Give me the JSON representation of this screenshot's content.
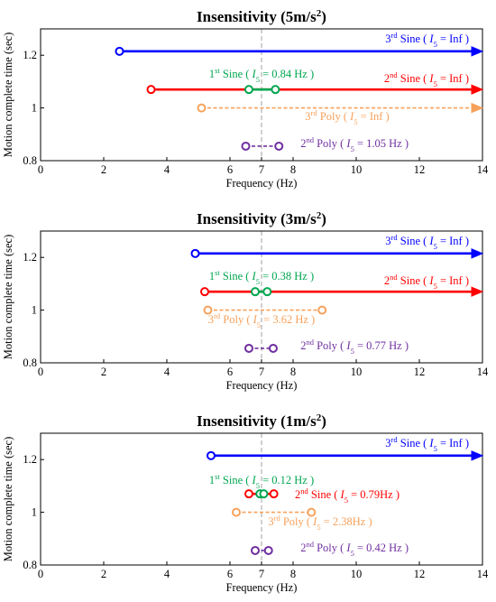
{
  "chart_data": [
    {
      "type": "line",
      "title": "Insensitivity (5m/s²)",
      "xlabel": "Frequency (Hz)",
      "ylabel": "Motion complete time (sec)",
      "xlim": [
        0,
        14
      ],
      "ylim": [
        0.8,
        1.3
      ],
      "xticks": [
        "0",
        "2",
        "4",
        "6",
        "7",
        "8",
        "10",
        "12",
        "14"
      ],
      "yticks": [
        "0.8",
        "1",
        "1.2"
      ],
      "reference_x": 7,
      "series": [
        {
          "name": "3rd Sine ( I5 = Inf )",
          "color": "#0000ff",
          "style": "solid",
          "x": [
            2.5,
            14
          ],
          "y": [
            1.215,
            1.215
          ],
          "end": "arrow"
        },
        {
          "name": "2nd Sine ( I5 = Inf )",
          "color": "#ff0000",
          "style": "solid",
          "x": [
            3.5,
            14
          ],
          "y": [
            1.07,
            1.07
          ],
          "end": "arrow"
        },
        {
          "name": "1st Sine ( I5 = 0.84 Hz )",
          "color": "#00a650",
          "style": "solid",
          "x": [
            6.6,
            7.44
          ],
          "y": [
            1.07,
            1.07
          ],
          "end": "circle"
        },
        {
          "name": "3rd Poly ( I5 = Inf )",
          "color": "#f7a15a",
          "style": "dashed",
          "x": [
            5.1,
            14
          ],
          "y": [
            1.0,
            1.0
          ],
          "end": "arrow"
        },
        {
          "name": "2nd Poly ( I5 = 1.05 Hz )",
          "color": "#7030a0",
          "style": "dashed",
          "x": [
            6.5,
            7.55
          ],
          "y": [
            0.855,
            0.855
          ],
          "end": "circle"
        }
      ],
      "annotations": [
        {
          "pre": "3",
          "sup": "rd",
          "rest": " Sine ( ",
          "sym": "I",
          "sub": "5",
          "post": " = Inf )",
          "color": "#0000ff"
        },
        {
          "pre": "1",
          "sup": "st",
          "rest": " Sine ( ",
          "sym": "I",
          "sub": "5",
          "post": " = 0.84 Hz )",
          "color": "#00a650"
        },
        {
          "pre": "2",
          "sup": "nd",
          "rest": " Sine ( ",
          "sym": "I",
          "sub": "5",
          "post": " = Inf )",
          "color": "#ff0000"
        },
        {
          "pre": "3",
          "sup": "rd",
          "rest": " Poly ( ",
          "sym": "I",
          "sub": "5",
          "post": " = Inf )",
          "color": "#f7a15a"
        },
        {
          "pre": "2",
          "sup": "nd",
          "rest": " Poly ( ",
          "sym": "I",
          "sub": "5",
          "post": " = 1.05 Hz )",
          "color": "#7030a0"
        }
      ]
    },
    {
      "type": "line",
      "title": "Insensitivity (3m/s²)",
      "xlabel": "Frequency (Hz)",
      "ylabel": "Motion complete time (sec)",
      "xlim": [
        0,
        14
      ],
      "ylim": [
        0.8,
        1.3
      ],
      "xticks": [
        "0",
        "2",
        "4",
        "6",
        "7",
        "8",
        "10",
        "12",
        "14"
      ],
      "yticks": [
        "0.8",
        "1",
        "1.2"
      ],
      "reference_x": 7,
      "series": [
        {
          "name": "3rd Sine ( I5 = Inf )",
          "color": "#0000ff",
          "style": "solid",
          "x": [
            4.9,
            14
          ],
          "y": [
            1.215,
            1.215
          ],
          "end": "arrow"
        },
        {
          "name": "2nd Sine ( I5 = Inf )",
          "color": "#ff0000",
          "style": "solid",
          "x": [
            5.2,
            14
          ],
          "y": [
            1.07,
            1.07
          ],
          "end": "arrow"
        },
        {
          "name": "1st Sine ( I5 = 0.38 Hz )",
          "color": "#00a650",
          "style": "solid",
          "x": [
            6.8,
            7.18
          ],
          "y": [
            1.07,
            1.07
          ],
          "end": "circle"
        },
        {
          "name": "3rd Poly ( I5 = 3.62 Hz )",
          "color": "#f7a15a",
          "style": "dashed",
          "x": [
            5.3,
            8.92
          ],
          "y": [
            1.0,
            1.0
          ],
          "end": "circle"
        },
        {
          "name": "2nd Poly ( I5 = 0.77 Hz )",
          "color": "#7030a0",
          "style": "dashed",
          "x": [
            6.6,
            7.37
          ],
          "y": [
            0.855,
            0.855
          ],
          "end": "circle"
        }
      ],
      "annotations": [
        {
          "pre": "3",
          "sup": "rd",
          "rest": " Sine ( ",
          "sym": "I",
          "sub": "5",
          "post": " = Inf )",
          "color": "#0000ff"
        },
        {
          "pre": "1",
          "sup": "st",
          "rest": " Sine ( ",
          "sym": "I",
          "sub": "5",
          "post": " = 0.38 Hz )",
          "color": "#00a650"
        },
        {
          "pre": "2",
          "sup": "nd",
          "rest": " Sine ( ",
          "sym": "I",
          "sub": "5",
          "post": " = Inf )",
          "color": "#ff0000"
        },
        {
          "pre": "3",
          "sup": "rd",
          "rest": " Poly ( ",
          "sym": "I",
          "sub": "5",
          "post": " = 3.62 Hz )",
          "color": "#f7a15a"
        },
        {
          "pre": "2",
          "sup": "nd",
          "rest": " Poly ( ",
          "sym": "I",
          "sub": "5",
          "post": " = 0.77 Hz )",
          "color": "#7030a0"
        }
      ]
    },
    {
      "type": "line",
      "title": "Insensitivity (1m/s²)",
      "xlabel": "Frequency (Hz)",
      "ylabel": "Motion complete time (sec)",
      "xlim": [
        0,
        14
      ],
      "ylim": [
        0.8,
        1.3
      ],
      "xticks": [
        "0",
        "2",
        "4",
        "6",
        "7",
        "8",
        "10",
        "12",
        "14"
      ],
      "yticks": [
        "0.8",
        "1",
        "1.2"
      ],
      "reference_x": 7,
      "series": [
        {
          "name": "3rd Sine ( I5 = Inf )",
          "color": "#0000ff",
          "style": "solid",
          "x": [
            5.4,
            14
          ],
          "y": [
            1.215,
            1.215
          ],
          "end": "arrow"
        },
        {
          "name": "2nd Sine ( I5 = 0.79Hz )",
          "color": "#ff0000",
          "style": "solid",
          "x": [
            6.6,
            7.39
          ],
          "y": [
            1.07,
            1.07
          ],
          "end": "circle"
        },
        {
          "name": "1st Sine ( I5 = 0.12 Hz )",
          "color": "#00a650",
          "style": "solid",
          "x": [
            6.95,
            7.07
          ],
          "y": [
            1.07,
            1.07
          ],
          "end": "circle"
        },
        {
          "name": "3rd Poly ( I5 = 2.38Hz )",
          "color": "#f7a15a",
          "style": "dashed",
          "x": [
            6.2,
            8.58
          ],
          "y": [
            1.0,
            1.0
          ],
          "end": "circle"
        },
        {
          "name": "2nd Poly ( I5 = 0.42 Hz )",
          "color": "#7030a0",
          "style": "dashed",
          "x": [
            6.8,
            7.22
          ],
          "y": [
            0.855,
            0.855
          ],
          "end": "circle"
        }
      ],
      "annotations": [
        {
          "pre": "3",
          "sup": "rd",
          "rest": " Sine ( ",
          "sym": "I",
          "sub": "5",
          "post": " = Inf )",
          "color": "#0000ff"
        },
        {
          "pre": "1",
          "sup": "st",
          "rest": " Sine ( ",
          "sym": "I",
          "sub": "5",
          "post": " = 0.12 Hz )",
          "color": "#00a650"
        },
        {
          "pre": "2",
          "sup": "nd",
          "rest": " Sine ( ",
          "sym": "I",
          "sub": "5",
          "post": " = 0.79Hz )",
          "color": "#ff0000"
        },
        {
          "pre": "3",
          "sup": "rd",
          "rest": " Poly ( ",
          "sym": "I",
          "sub": "5",
          "post": " = 2.38Hz )",
          "color": "#f7a15a"
        },
        {
          "pre": "2",
          "sup": "nd",
          "rest": " Poly ( ",
          "sym": "I",
          "sub": "5",
          "post": " = 0.42 Hz )",
          "color": "#7030a0"
        }
      ]
    }
  ]
}
